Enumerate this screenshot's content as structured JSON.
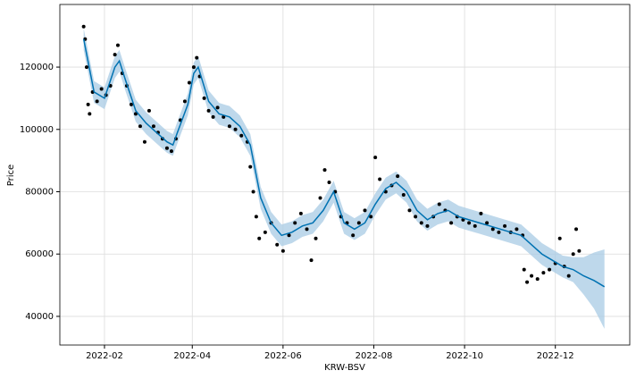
{
  "chart_data": {
    "type": "forecast",
    "xlabel": "KRW-BSV",
    "ylabel": "Price",
    "xlim": [
      "2022-01-02",
      "2023-01-20"
    ],
    "ylim": [
      30800,
      140100
    ],
    "xticks": [
      {
        "value": "2022-02-01",
        "label": "2022-02"
      },
      {
        "value": "2022-04-01",
        "label": "2022-04"
      },
      {
        "value": "2022-06-01",
        "label": "2022-06"
      },
      {
        "value": "2022-08-01",
        "label": "2022-08"
      },
      {
        "value": "2022-10-01",
        "label": "2022-10"
      },
      {
        "value": "2022-12-01",
        "label": "2022-12"
      }
    ],
    "yticks": [
      40000,
      60000,
      80000,
      100000,
      120000
    ],
    "grid": true,
    "forecast": {
      "color": "#0072B2",
      "band_color": "#a8cbe4",
      "x": [
        "2022-01-18",
        "2022-01-25",
        "2022-02-01",
        "2022-02-08",
        "2022-02-11",
        "2022-02-15",
        "2022-02-22",
        "2022-03-01",
        "2022-03-08",
        "2022-03-15",
        "2022-03-19",
        "2022-03-22",
        "2022-03-29",
        "2022-04-02",
        "2022-04-05",
        "2022-04-12",
        "2022-04-19",
        "2022-04-26",
        "2022-05-03",
        "2022-05-10",
        "2022-05-17",
        "2022-05-24",
        "2022-05-31",
        "2022-06-07",
        "2022-06-14",
        "2022-06-21",
        "2022-06-28",
        "2022-07-05",
        "2022-07-12",
        "2022-07-19",
        "2022-07-26",
        "2022-08-02",
        "2022-08-09",
        "2022-08-16",
        "2022-08-23",
        "2022-08-30",
        "2022-09-06",
        "2022-09-13",
        "2022-09-20",
        "2022-09-27",
        "2022-10-04",
        "2022-10-11",
        "2022-10-18",
        "2022-10-25",
        "2022-11-01",
        "2022-11-08",
        "2022-11-15",
        "2022-11-22",
        "2022-11-29",
        "2022-12-06",
        "2022-12-13",
        "2022-12-20",
        "2022-12-27",
        "2023-01-03"
      ],
      "values": [
        129000,
        112000,
        110000,
        120000,
        122000,
        116000,
        106000,
        102000,
        99000,
        96000,
        95000,
        99000,
        108000,
        118000,
        120000,
        109000,
        105000,
        104000,
        101000,
        95000,
        78000,
        70000,
        66000,
        67000,
        69000,
        70000,
        74000,
        80000,
        70000,
        68000,
        70000,
        76000,
        81000,
        83000,
        80000,
        74000,
        71000,
        73000,
        74000,
        72000,
        71000,
        70000,
        69000,
        68000,
        67000,
        66000,
        63000,
        60000,
        58000,
        56000,
        55000,
        53000,
        51500,
        49500
      ],
      "upper": [
        132500,
        115500,
        113500,
        123500,
        125500,
        119500,
        109500,
        105500,
        102500,
        99500,
        98500,
        102500,
        111500,
        121500,
        123500,
        112500,
        108500,
        107500,
        104500,
        98500,
        81500,
        73500,
        69500,
        70500,
        72500,
        73500,
        77500,
        83500,
        73500,
        71500,
        73500,
        79500,
        84500,
        86500,
        83500,
        77500,
        74500,
        76500,
        77500,
        75500,
        74500,
        73500,
        72500,
        71500,
        70500,
        69500,
        66500,
        63500,
        61500,
        59500,
        59000,
        59000,
        60500,
        61500
      ],
      "lower": [
        125500,
        108500,
        106500,
        116500,
        118500,
        112500,
        102500,
        98500,
        95500,
        92500,
        91500,
        95500,
        104500,
        114500,
        116500,
        105500,
        101500,
        100500,
        97500,
        91500,
        74500,
        66500,
        62500,
        63500,
        65500,
        66500,
        70500,
        76500,
        66500,
        64500,
        66500,
        72500,
        77500,
        79500,
        76500,
        70500,
        67500,
        69500,
        70500,
        68500,
        67500,
        66500,
        65500,
        64500,
        63500,
        62500,
        59500,
        56500,
        54500,
        52500,
        51000,
        47000,
        42500,
        36000
      ]
    },
    "observed": {
      "color": "#000000",
      "x": [
        "2022-01-18",
        "2022-01-19",
        "2022-01-20",
        "2022-01-21",
        "2022-01-22",
        "2022-01-24",
        "2022-01-27",
        "2022-01-30",
        "2022-02-02",
        "2022-02-05",
        "2022-02-08",
        "2022-02-10",
        "2022-02-13",
        "2022-02-16",
        "2022-02-19",
        "2022-02-22",
        "2022-02-25",
        "2022-02-28",
        "2022-03-03",
        "2022-03-06",
        "2022-03-09",
        "2022-03-12",
        "2022-03-15",
        "2022-03-18",
        "2022-03-21",
        "2022-03-24",
        "2022-03-27",
        "2022-03-30",
        "2022-04-02",
        "2022-04-04",
        "2022-04-06",
        "2022-04-09",
        "2022-04-12",
        "2022-04-15",
        "2022-04-18",
        "2022-04-22",
        "2022-04-26",
        "2022-04-30",
        "2022-05-04",
        "2022-05-08",
        "2022-05-10",
        "2022-05-12",
        "2022-05-14",
        "2022-05-16",
        "2022-05-20",
        "2022-05-24",
        "2022-05-28",
        "2022-06-01",
        "2022-06-05",
        "2022-06-09",
        "2022-06-13",
        "2022-06-17",
        "2022-06-20",
        "2022-06-23",
        "2022-06-26",
        "2022-06-29",
        "2022-07-02",
        "2022-07-06",
        "2022-07-10",
        "2022-07-14",
        "2022-07-18",
        "2022-07-22",
        "2022-07-26",
        "2022-07-30",
        "2022-08-02",
        "2022-08-05",
        "2022-08-09",
        "2022-08-13",
        "2022-08-17",
        "2022-08-21",
        "2022-08-25",
        "2022-08-29",
        "2022-09-02",
        "2022-09-06",
        "2022-09-10",
        "2022-09-14",
        "2022-09-18",
        "2022-09-22",
        "2022-09-26",
        "2022-09-30",
        "2022-10-04",
        "2022-10-08",
        "2022-10-12",
        "2022-10-16",
        "2022-10-20",
        "2022-10-24",
        "2022-10-28",
        "2022-11-01",
        "2022-11-05",
        "2022-11-09",
        "2022-11-10",
        "2022-11-12",
        "2022-11-15",
        "2022-11-19",
        "2022-11-23",
        "2022-11-27",
        "2022-12-01",
        "2022-12-04",
        "2022-12-07",
        "2022-12-10",
        "2022-12-13",
        "2022-12-15",
        "2022-12-17"
      ],
      "values": [
        133000,
        129000,
        120000,
        108000,
        105000,
        112000,
        109000,
        113000,
        111000,
        114000,
        124000,
        127000,
        118000,
        114000,
        108000,
        105000,
        101000,
        96000,
        106000,
        101000,
        99000,
        97000,
        94000,
        93000,
        97000,
        103000,
        109000,
        115000,
        120000,
        123000,
        117000,
        110000,
        106000,
        104000,
        107000,
        104000,
        101000,
        100000,
        98000,
        96000,
        88000,
        80000,
        72000,
        65000,
        67000,
        70000,
        63000,
        61000,
        66000,
        70000,
        73000,
        68000,
        58000,
        65000,
        78000,
        87000,
        83000,
        80000,
        72000,
        70000,
        66000,
        70000,
        74000,
        72000,
        91000,
        84000,
        80000,
        82000,
        85000,
        79000,
        74000,
        72000,
        70000,
        69000,
        72000,
        76000,
        74000,
        70000,
        72000,
        71000,
        70000,
        69000,
        73000,
        70000,
        68000,
        67000,
        69000,
        67000,
        68000,
        66000,
        55000,
        51000,
        53000,
        52000,
        54000,
        55000,
        57000,
        65000,
        56000,
        53000,
        60000,
        68000,
        61000
      ]
    }
  }
}
